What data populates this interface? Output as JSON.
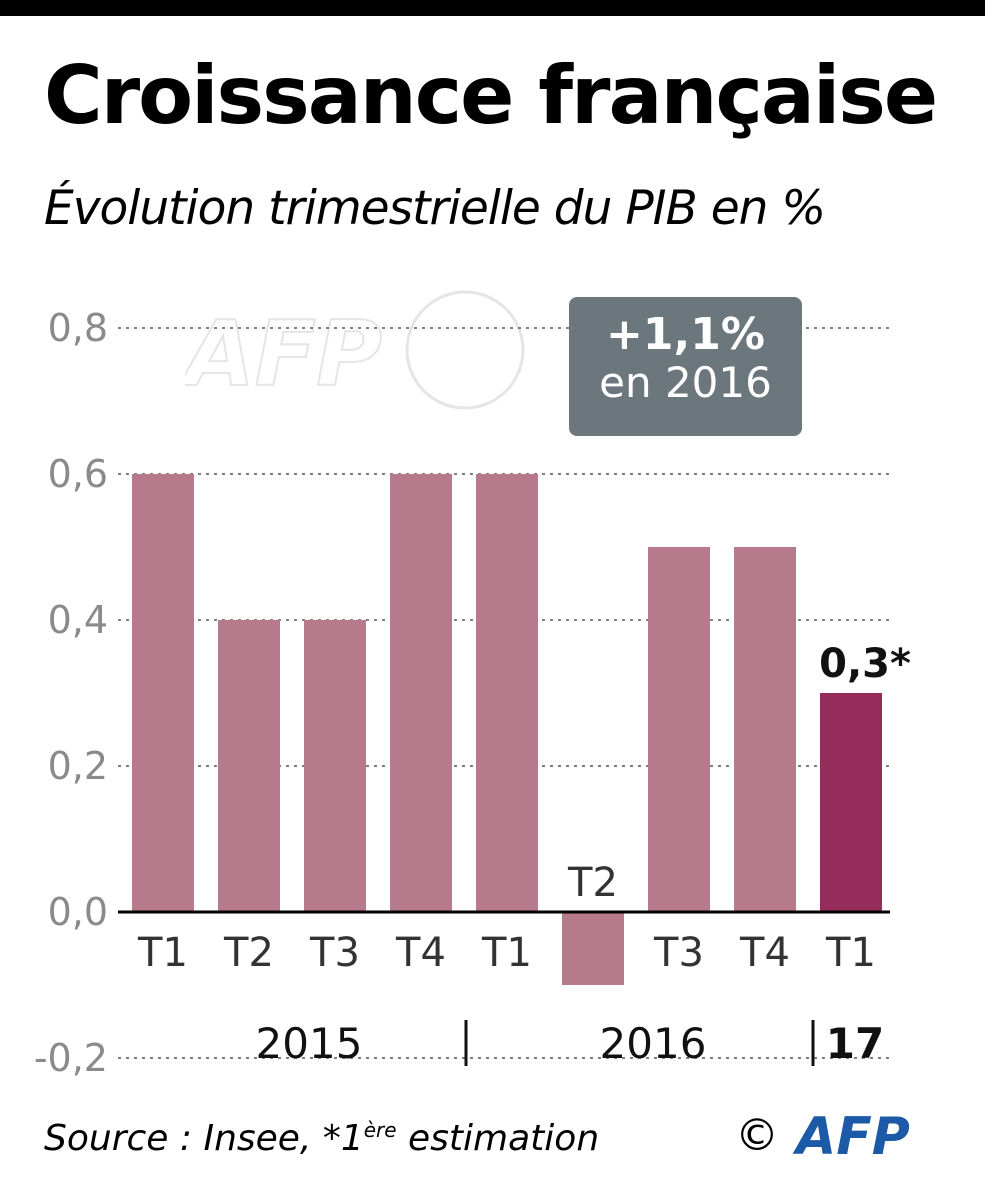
{
  "header": {
    "title": "Croissance française",
    "subtitle": "Évolution trimestrielle du PIB en %"
  },
  "callout": {
    "value": "+1,1%",
    "label": "en 2016"
  },
  "footer": {
    "source_prefix": "Source : Insee, *1",
    "source_sup": "ère",
    "source_suffix": " estimation",
    "copyright": "©",
    "logo": "AFP"
  },
  "colors": {
    "bar": "#b67a8c",
    "highlight": "#952d5a",
    "callout_bg": "#6b777d",
    "axis": "#000000",
    "grid": "#555555"
  },
  "chart_data": {
    "type": "bar",
    "title": "Croissance française",
    "subtitle": "Évolution trimestrielle du PIB en %",
    "ylim": [
      -0.2,
      0.8
    ],
    "yticks": [
      -0.2,
      0.0,
      0.2,
      0.4,
      0.6,
      0.8
    ],
    "ytick_labels": [
      "-0,2",
      "0,0",
      "0,2",
      "0,4",
      "0,6",
      "0,8"
    ],
    "grid": "dotted horizontal",
    "categories": [
      "T1",
      "T2",
      "T3",
      "T4",
      "T1",
      "T2",
      "T3",
      "T4",
      "T1"
    ],
    "years": [
      "2015",
      "2016",
      "17"
    ],
    "year_groups": [
      {
        "label": "2015",
        "count": 4
      },
      {
        "label": "2016",
        "count": 4
      },
      {
        "label": "17",
        "count": 1
      }
    ],
    "values": [
      0.6,
      0.4,
      0.4,
      0.6,
      0.6,
      -0.1,
      0.5,
      0.5,
      0.3
    ],
    "highlight_index": 8,
    "annotations": [
      {
        "index": 8,
        "text": "0,3*"
      }
    ]
  }
}
